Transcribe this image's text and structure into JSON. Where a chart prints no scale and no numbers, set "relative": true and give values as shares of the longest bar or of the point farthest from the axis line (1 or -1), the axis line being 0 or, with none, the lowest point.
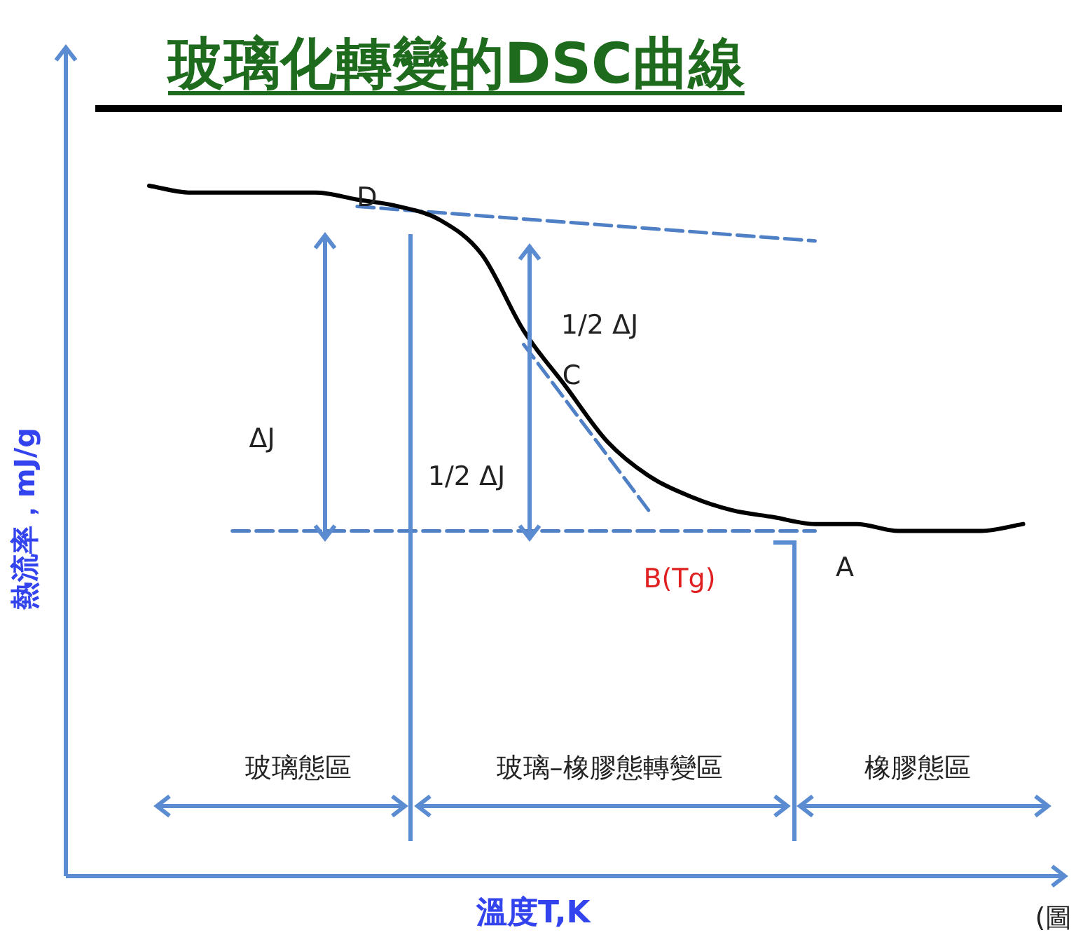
{
  "chart_data": {
    "type": "line",
    "title": "玻璃化轉變的DSC曲線",
    "xlabel": "溫度T,K",
    "ylabel": "熱流率，mJ/g",
    "relative": true,
    "categories": [
      null,
      null,
      null,
      null,
      null,
      null,
      null,
      null,
      null,
      null,
      null,
      null,
      null,
      null,
      null,
      null,
      null,
      null,
      null,
      null,
      null,
      null,
      null,
      null,
      null
    ],
    "series": [
      {
        "color": "#000000",
        "values": [
          null,
          null,
          1.0,
          0.99,
          0.99,
          0.99,
          0.99,
          0.98,
          0.97,
          0.95,
          0.9,
          0.79,
          0.71,
          0.63,
          0.58,
          0.55,
          0.53,
          0.52,
          0.51,
          0.51,
          0.5,
          0.5,
          0.5,
          0.51,
          null
        ]
      },
      {
        "color": "#4f7fc4",
        "line_style": "dashed",
        "values": [
          null,
          null,
          null,
          null,
          null,
          null,
          null,
          0.97,
          null,
          null,
          null,
          null,
          null,
          null,
          null,
          null,
          null,
          null,
          0.92,
          null,
          null,
          null,
          null,
          null,
          null
        ]
      },
      {
        "color": "#4f7fc4",
        "line_style": "dashed",
        "values": [
          null,
          null,
          null,
          null,
          0.5,
          null,
          null,
          null,
          null,
          null,
          null,
          null,
          null,
          null,
          null,
          null,
          null,
          null,
          0.5,
          null,
          null,
          null,
          null,
          null,
          null
        ]
      },
      {
        "color": "#4f7fc4",
        "line_style": "dashed",
        "values": [
          null,
          null,
          null,
          null,
          null,
          null,
          null,
          null,
          null,
          null,
          null,
          0.77,
          null,
          null,
          0.53,
          null,
          null,
          null,
          null,
          null,
          null,
          null,
          null,
          null,
          null
        ]
      }
    ],
    "ref_lines": [
      {
        "axis": "y",
        "value": 0,
        "color": "#5b8bd0"
      }
    ],
    "annotations": [
      "D",
      "C",
      "B(Tg)",
      "A",
      "ΔJ",
      "1/2 ΔJ",
      "1/2 ΔJ",
      "玻璃態區",
      "玻璃–橡膠態轉變區",
      "橡膠態區",
      "(圖"
    ]
  }
}
